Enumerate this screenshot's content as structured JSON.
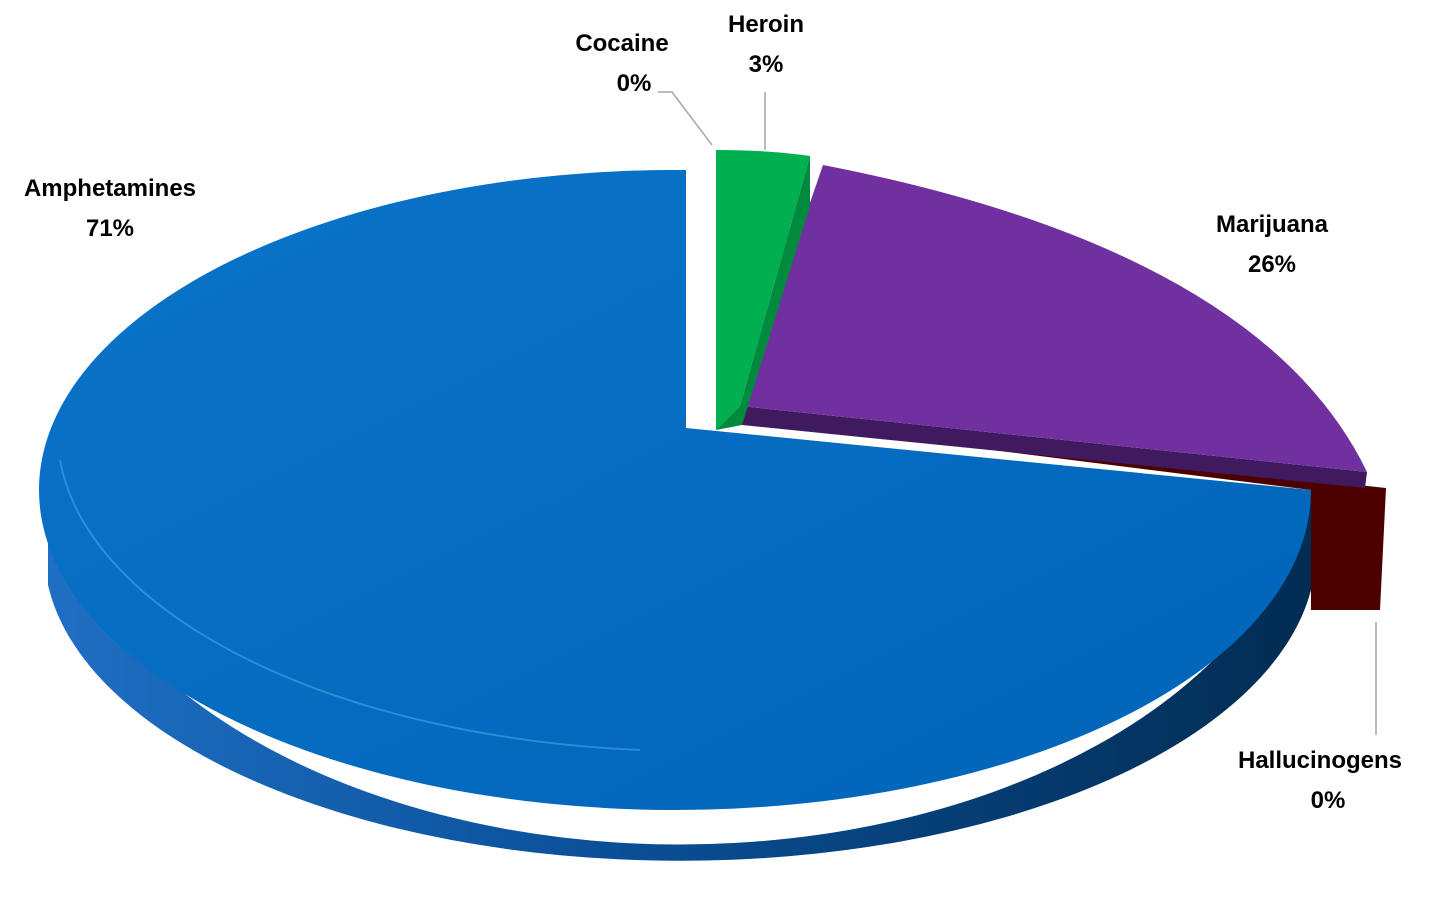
{
  "chart_data": {
    "type": "pie",
    "style": "3d-exploded",
    "slices": [
      {
        "name": "Heroin",
        "value": 3,
        "label": "3%",
        "color": "#00b050"
      },
      {
        "name": "Marijuana",
        "value": 26,
        "label": "26%",
        "color": "#7030a0"
      },
      {
        "name": "Hallucinogens",
        "value": 0,
        "label": "0%",
        "color": "#4d0000"
      },
      {
        "name": "Amphetamines",
        "value": 71,
        "label": "71%",
        "color": "#0070c0"
      },
      {
        "name": "Cocaine",
        "value": 0,
        "label": "0%",
        "color": "#c00000"
      }
    ],
    "legend": "none",
    "data_labels": "category name and percentage"
  }
}
